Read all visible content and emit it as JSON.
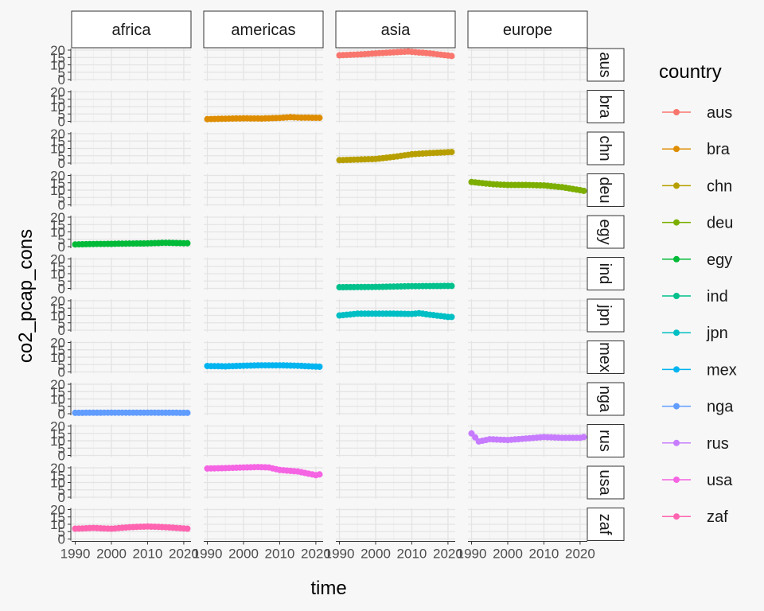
{
  "chart_data": {
    "type": "line",
    "facet_columns": [
      "africa",
      "americas",
      "asia",
      "europe"
    ],
    "facet_rows": [
      "aus",
      "bra",
      "chn",
      "deu",
      "egy",
      "ind",
      "jpn",
      "mex",
      "nga",
      "rus",
      "usa",
      "zaf"
    ],
    "x_ticks": [
      1990,
      2000,
      2010,
      2020
    ],
    "y_ticks": [
      0,
      5,
      10,
      15,
      20
    ],
    "xlim": [
      1989,
      2022
    ],
    "ylim": [
      0,
      20
    ],
    "xlabel": "time",
    "ylabel": "co2_pcap_cons",
    "legend_title": "country",
    "legend_position": "right",
    "grid": true,
    "series": [
      {
        "name": "aus",
        "region": "asia",
        "color": "#F8766D",
        "x": [
          1990,
          1995,
          2000,
          2005,
          2009,
          2015,
          2021
        ],
        "values": [
          16.5,
          17.0,
          17.8,
          18.5,
          19.0,
          17.8,
          16.0
        ]
      },
      {
        "name": "bra",
        "region": "americas",
        "color": "#DE8C00",
        "x": [
          1990,
          1995,
          2000,
          2005,
          2010,
          2013,
          2016,
          2021
        ],
        "values": [
          1.5,
          1.8,
          2.0,
          1.9,
          2.3,
          2.8,
          2.5,
          2.4
        ]
      },
      {
        "name": "chn",
        "region": "asia",
        "color": "#B79F00",
        "x": [
          1990,
          1995,
          2000,
          2005,
          2010,
          2015,
          2021
        ],
        "values": [
          2.0,
          2.4,
          2.8,
          4.2,
          6.0,
          6.8,
          7.5
        ]
      },
      {
        "name": "deu",
        "region": "europe",
        "color": "#7CAE00",
        "x": [
          1990,
          1992,
          1996,
          2000,
          2005,
          2010,
          2015,
          2020,
          2021
        ],
        "values": [
          15.5,
          15.0,
          14.0,
          13.5,
          13.5,
          13.2,
          12.0,
          10.0,
          9.5
        ]
      },
      {
        "name": "egy",
        "region": "africa",
        "color": "#00BA38",
        "x": [
          1990,
          1995,
          2000,
          2005,
          2010,
          2015,
          2021
        ],
        "values": [
          1.5,
          1.8,
          1.9,
          2.1,
          2.2,
          2.6,
          2.3
        ]
      },
      {
        "name": "ind",
        "region": "asia",
        "color": "#00C08B",
        "x": [
          1990,
          2000,
          2010,
          2021
        ],
        "values": [
          0.8,
          1.0,
          1.5,
          1.7
        ]
      },
      {
        "name": "jpn",
        "region": "asia",
        "color": "#00BFC4",
        "x": [
          1990,
          1995,
          2000,
          2005,
          2010,
          2012,
          2015,
          2020,
          2021
        ],
        "values": [
          10.0,
          11.2,
          11.2,
          11.2,
          11.0,
          11.5,
          10.5,
          9.0,
          9.0
        ]
      },
      {
        "name": "mex",
        "region": "americas",
        "color": "#00B4F0",
        "x": [
          1990,
          1995,
          2000,
          2005,
          2010,
          2015,
          2021
        ],
        "values": [
          4.0,
          3.8,
          4.2,
          4.5,
          4.5,
          4.2,
          3.5
        ]
      },
      {
        "name": "nga",
        "region": "africa",
        "color": "#619CFF",
        "x": [
          1990,
          2000,
          2010,
          2021
        ],
        "values": [
          0.6,
          0.7,
          0.7,
          0.6
        ]
      },
      {
        "name": "rus",
        "region": "europe",
        "color": "#C77CFF",
        "x": [
          1990,
          1992,
          1995,
          2000,
          2005,
          2010,
          2015,
          2020,
          2021
        ],
        "values": [
          15.0,
          9.5,
          11.0,
          10.5,
          11.5,
          12.5,
          12.0,
          12.0,
          12.5
        ]
      },
      {
        "name": "usa",
        "region": "americas",
        "color": "#F564E3",
        "x": [
          1990,
          1995,
          2000,
          2004,
          2007,
          2010,
          2015,
          2020,
          2021
        ],
        "values": [
          19.5,
          19.8,
          20.2,
          20.5,
          20.2,
          18.5,
          17.5,
          15.0,
          15.5
        ]
      },
      {
        "name": "zaf",
        "region": "africa",
        "color": "#FF64B0",
        "x": [
          1990,
          1995,
          2000,
          2005,
          2010,
          2015,
          2021
        ],
        "values": [
          7.0,
          7.5,
          7.0,
          8.0,
          8.5,
          8.0,
          7.0
        ]
      }
    ]
  }
}
